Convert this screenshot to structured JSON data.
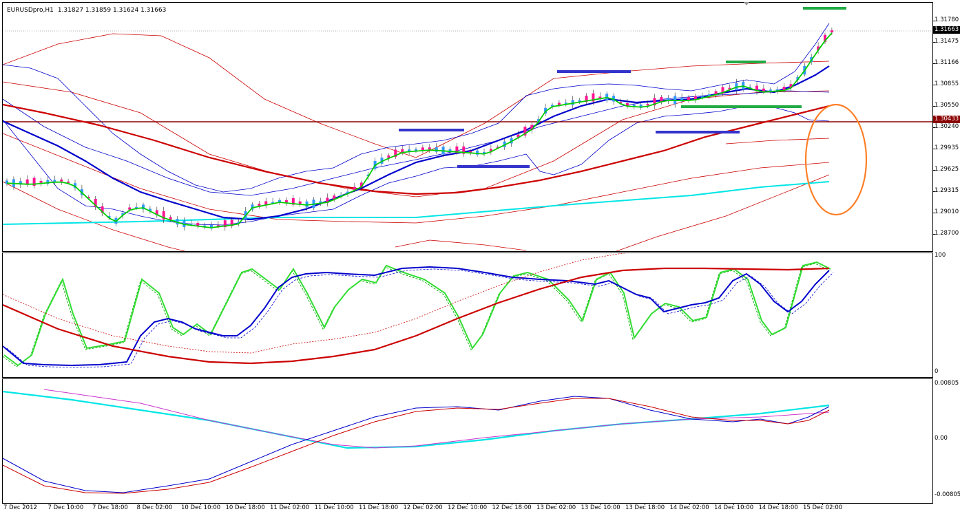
{
  "header": {
    "symbol": "EURUSDpro,H1",
    "ohlc": "1.31827 1.31859 1.31624 1.31663"
  },
  "price_axis": {
    "labels": [
      "1.31780",
      "1.31475",
      "1.31166",
      "1.30855",
      "1.30550",
      "1.30240",
      "1.29935",
      "1.29625",
      "1.29315",
      "1.29010",
      "1.28700"
    ],
    "current_price": "1.31663",
    "horizontal_line_price": "1.30433"
  },
  "oscillator_axis": {
    "labels": [
      "100",
      "0"
    ]
  },
  "macd_axis": {
    "labels": [
      "0.00805",
      "0.00",
      "-0.00805"
    ]
  },
  "time_axis": {
    "labels": [
      "7 Dec 2012",
      "7 Dec 10:00",
      "7 Dec 18:00",
      "8 Dec 02:00",
      "10 Dec 10:00",
      "10 Dec 18:00",
      "11 Dec 02:00",
      "11 Dec 10:00",
      "11 Dec 18:00",
      "12 Dec 02:00",
      "12 Dec 10:00",
      "12 Dec 18:00",
      "13 Dec 02:00",
      "13 Dec 10:00",
      "13 Dec 18:00",
      "14 Dec 02:00",
      "14 Dec 10:00",
      "14 Dec 18:00",
      "15 Dec 02:00"
    ]
  },
  "colors": {
    "bull_candle": "#3399ff",
    "bear_candle": "#ff1493",
    "ma_fast": "#00cc00",
    "ma_mid": "#0000cc",
    "ma_slow": "#cc0000",
    "ma_long": "#00e5e5",
    "support_mark": "#3333cc",
    "resistance_mark": "#22aa44",
    "highlight_ellipse": "#ff7f27",
    "horizontal_line": "#8b0000"
  }
}
